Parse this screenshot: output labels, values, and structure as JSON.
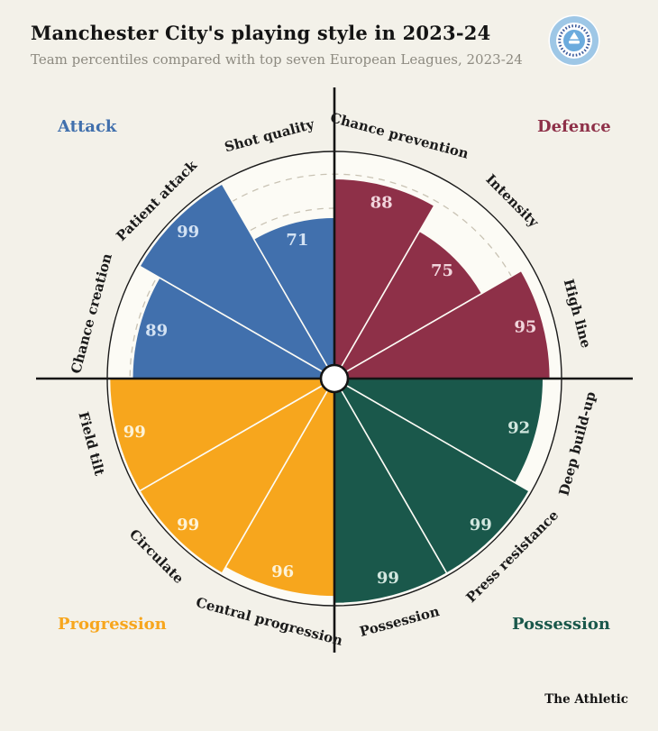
{
  "header": {
    "title": "Manchester City's playing style in 2023-24",
    "subtitle": "Team percentiles compared with top seven European Leagues, 2023-24"
  },
  "footer": {
    "brand": "The Athletic"
  },
  "logo": {
    "label": "Manchester City crest",
    "outer_ring": "#9ec7e6",
    "band": "#ffffff",
    "lettering": "#3a5a9b",
    "center": "#6cabdd",
    "detail": "#ffffff"
  },
  "colors": {
    "page_background": "#f3f1e9",
    "chart_background": "#fcfbf5",
    "axis": "#141414",
    "gridline": "#c9c3b4",
    "outer_ring": "#1a1a1a",
    "hub_fill": "#ffffff"
  },
  "quadrants": [
    {
      "label": "Attack",
      "position": "top-left",
      "color": "#4170ad",
      "value_text_color": "#d3e2f3"
    },
    {
      "label": "Defence",
      "position": "top-right",
      "color": "#8e3048",
      "value_text_color": "#f1d5dc"
    },
    {
      "label": "Progression",
      "position": "bottom-left",
      "color": "#f7a61d",
      "value_text_color": "#fdf3d8"
    },
    {
      "label": "Possession",
      "position": "bottom-right",
      "color": "#1a584b",
      "value_text_color": "#d2e7df"
    }
  ],
  "chart_data": {
    "type": "pie",
    "subtype": "pizza-radial-percentile",
    "units": "percentile (0-100)",
    "max": 100,
    "slice_angle_deg": 30,
    "clockwise_from_top": true,
    "rings_dashed": [
      25,
      50,
      75,
      90
    ],
    "slices": [
      {
        "label": "Chance prevention",
        "value": 88,
        "quadrant": "Defence"
      },
      {
        "label": "Intensity",
        "value": 75,
        "quadrant": "Defence"
      },
      {
        "label": "High line",
        "value": 95,
        "quadrant": "Defence"
      },
      {
        "label": "Deep build-up",
        "value": 92,
        "quadrant": "Possession"
      },
      {
        "label": "Press resistance",
        "value": 99,
        "quadrant": "Possession"
      },
      {
        "label": "Possession",
        "value": 99,
        "quadrant": "Possession"
      },
      {
        "label": "Central progression",
        "value": 96,
        "quadrant": "Progression"
      },
      {
        "label": "Circulate",
        "value": 99,
        "quadrant": "Progression"
      },
      {
        "label": "Field tilt",
        "value": 99,
        "quadrant": "Progression"
      },
      {
        "label": "Chance creation",
        "value": 89,
        "quadrant": "Attack"
      },
      {
        "label": "Patient attack",
        "value": 99,
        "quadrant": "Attack"
      },
      {
        "label": "Shot quality",
        "value": 71,
        "quadrant": "Attack"
      }
    ]
  }
}
